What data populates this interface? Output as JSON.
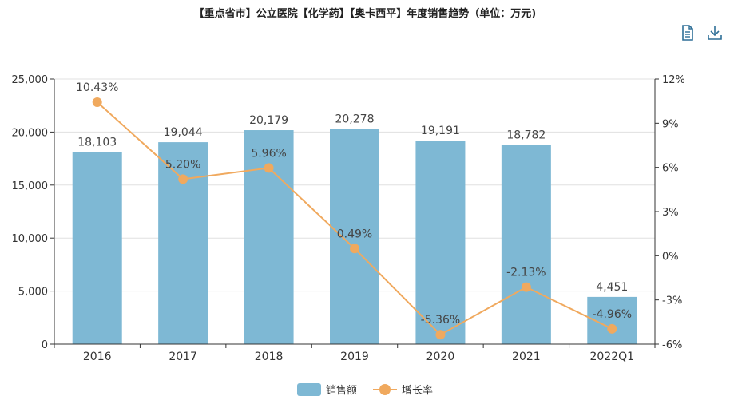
{
  "header": {
    "title": "【重点省市】公立医院【化学药】【奥卡西平】年度销售趋势（单位：万元)"
  },
  "toolbar": {
    "data_view_icon": "document-icon",
    "download_icon": "download-icon"
  },
  "colors": {
    "bar": "#7eb8d4",
    "line": "#f0a95e"
  },
  "chart_data": {
    "type": "bar",
    "categories": [
      "2016",
      "2017",
      "2018",
      "2019",
      "2020",
      "2021",
      "2022Q1"
    ],
    "series": [
      {
        "name": "销售额",
        "type": "bar",
        "axis": "left",
        "values": [
          18103,
          19044,
          20179,
          20278,
          19191,
          18782,
          4451
        ],
        "labels": [
          "18,103",
          "19,044",
          "20,179",
          "20,278",
          "19,191",
          "18,782",
          "4,451"
        ]
      },
      {
        "name": "增长率",
        "type": "line",
        "axis": "right",
        "values": [
          10.43,
          5.2,
          5.96,
          0.49,
          -5.36,
          -2.13,
          -4.96
        ],
        "labels": [
          "10.43%",
          "5.20%",
          "5.96%",
          "0.49%",
          "-5.36%",
          "-2.13%",
          "-4.96%"
        ]
      }
    ],
    "y_left": {
      "min": 0,
      "max": 25000,
      "ticks": [
        0,
        5000,
        10000,
        15000,
        20000,
        25000
      ],
      "tick_labels": [
        "0",
        "5,000",
        "10,000",
        "15,000",
        "20,000",
        "25,000"
      ]
    },
    "y_right": {
      "min": -6,
      "max": 12,
      "ticks": [
        -6,
        -3,
        0,
        3,
        6,
        9,
        12
      ],
      "tick_labels": [
        "-6%",
        "-3%",
        "0%",
        "3%",
        "6%",
        "9%",
        "12%"
      ]
    },
    "grid": true,
    "legend_position": "bottom-center"
  }
}
